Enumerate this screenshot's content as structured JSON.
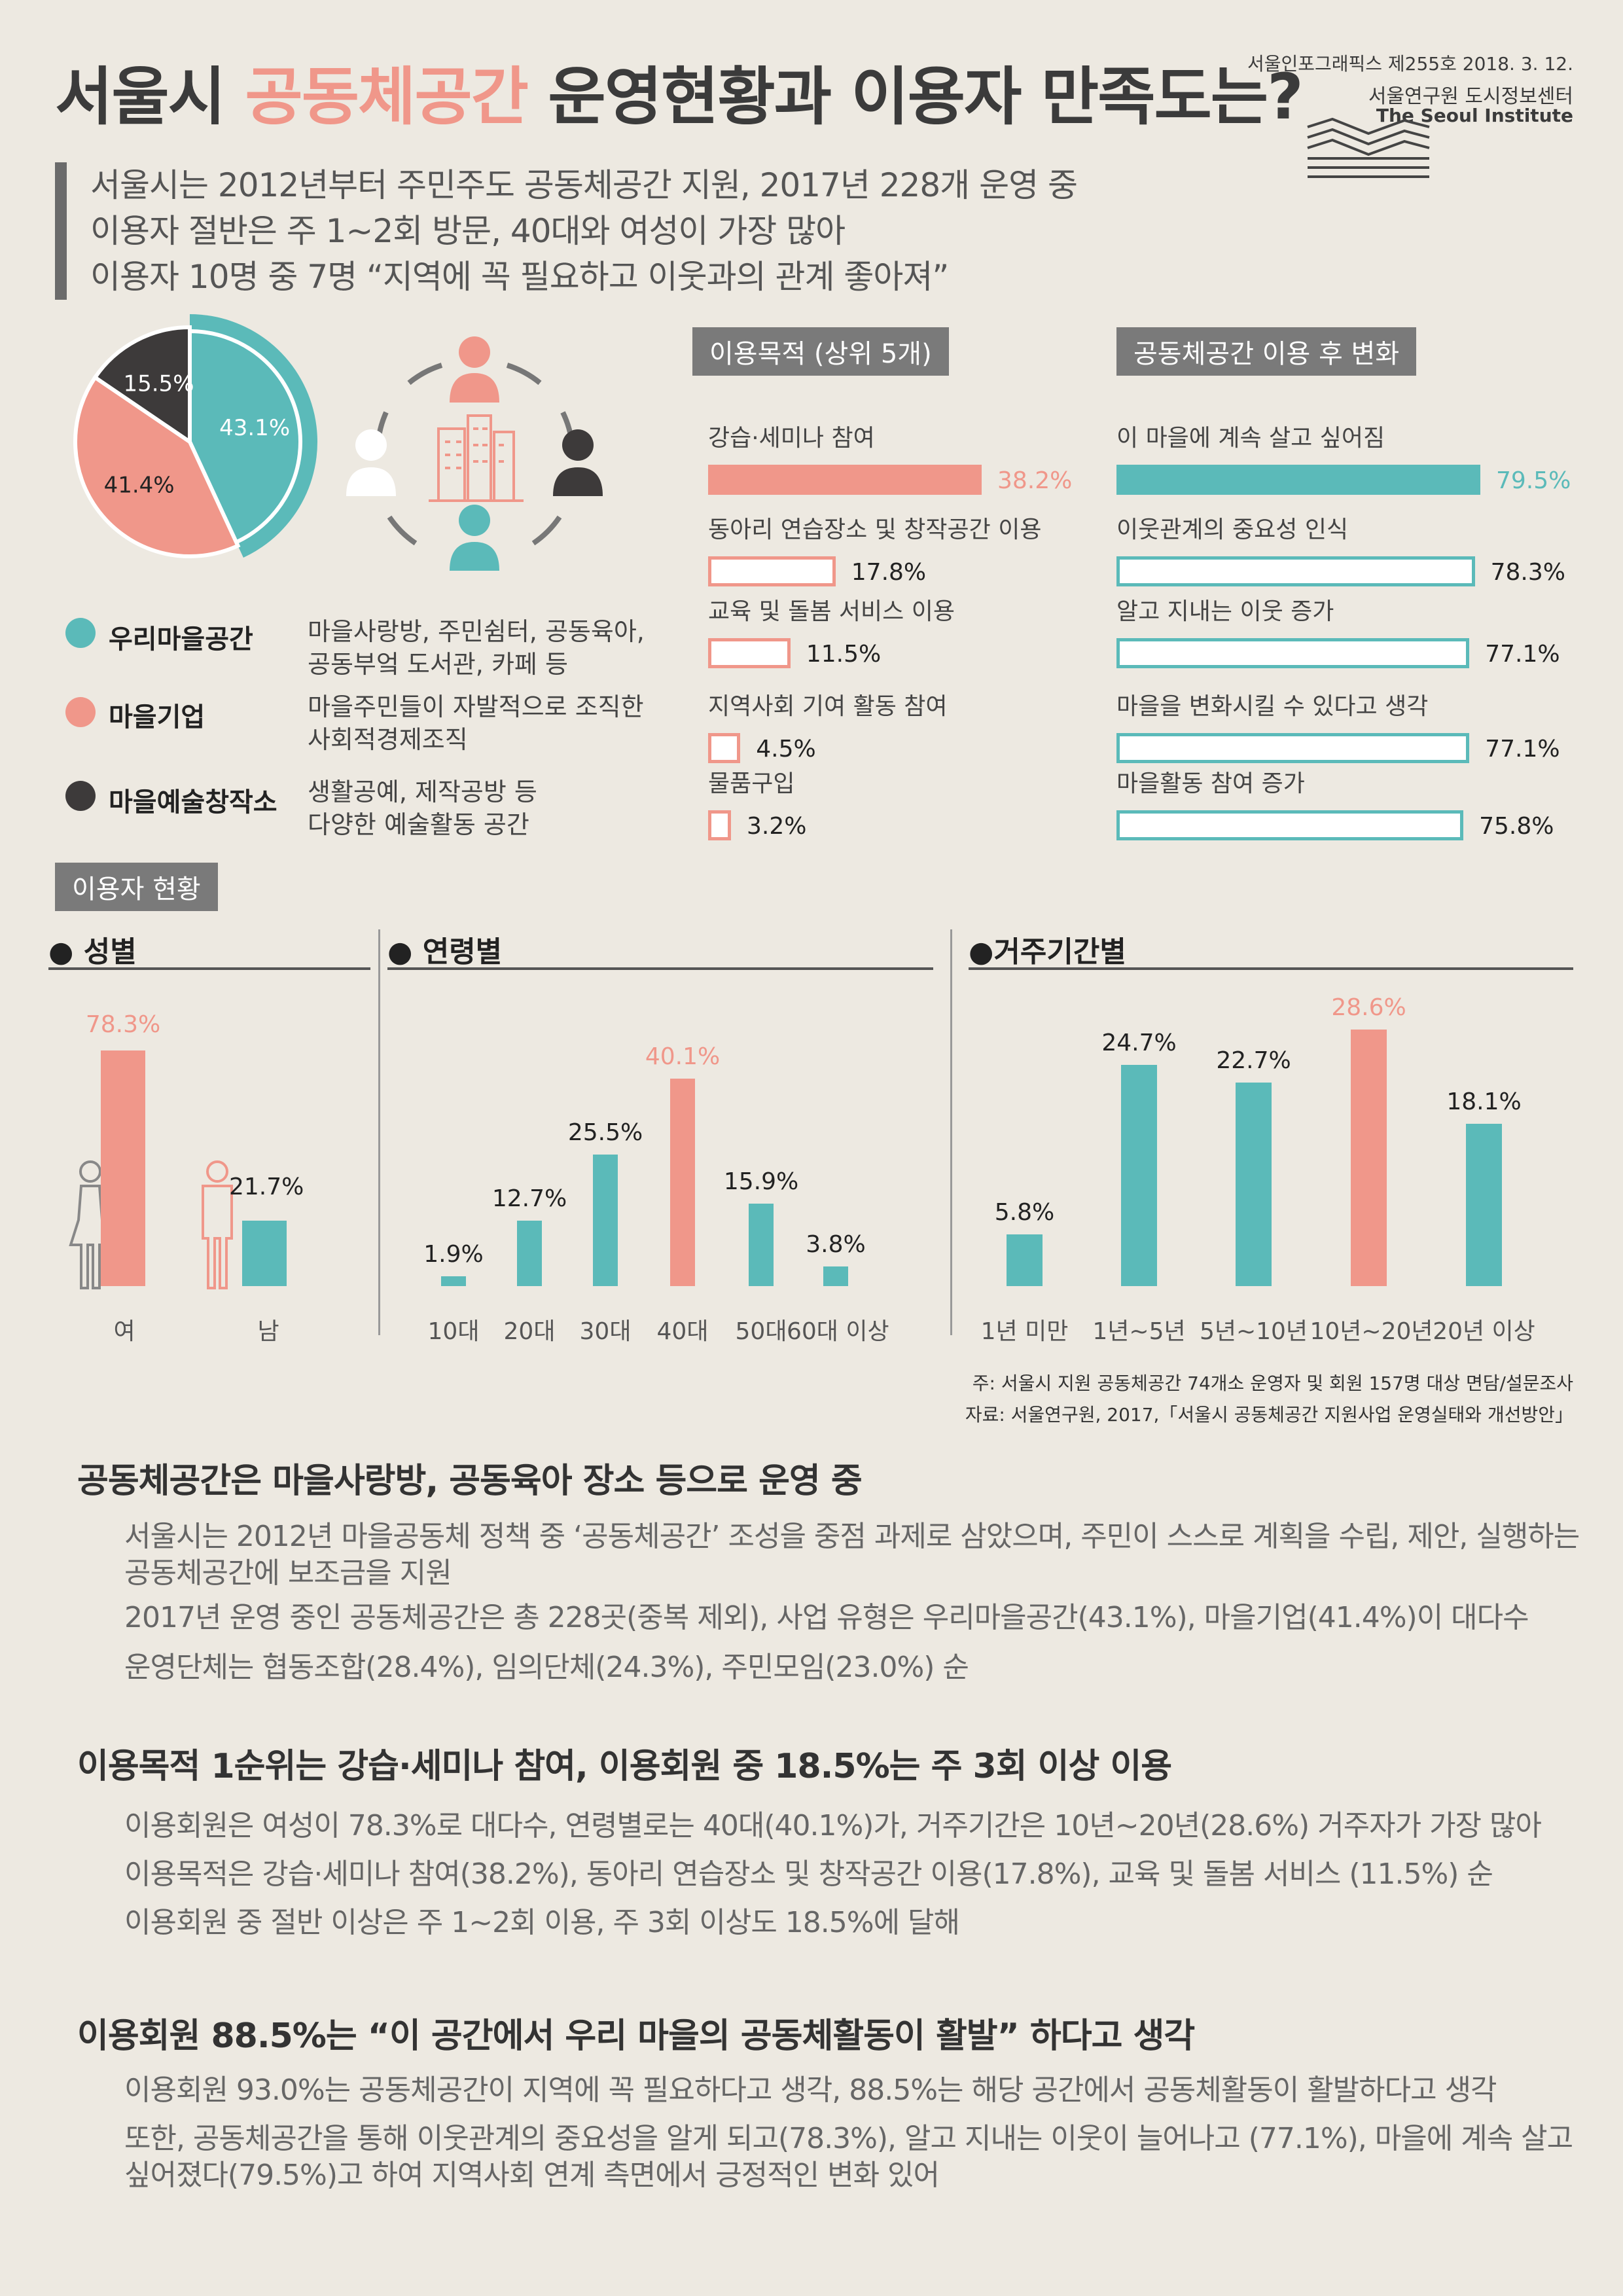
{
  "header": {
    "title_pre": "서울시 ",
    "title_accent": "공동체공간",
    "title_post": " 운영현황과 이용자 만족도는?",
    "issue": "서울인포그래픽스 제255호 2018. 3. 12.",
    "org_kr": "서울연구원 도시정보센터",
    "org_en": "The Seoul Institute"
  },
  "summary": [
    "서울시는 2012년부터 주민주도 공동체공간 지원, 2017년 228개 운영 중",
    "이용자 절반은 주 1~2회 방문, 40대와 여성이 가장 많아",
    "이용자 10명 중 7명 “지역에 꼭 필요하고 이웃과의 관계 좋아져”"
  ],
  "colors": {
    "teal": "#5bbab9",
    "salmon": "#f0978a",
    "dark": "#3d3a3a",
    "grey": "#7a7a7a"
  },
  "icons": [
    "person-icon",
    "building-icon"
  ],
  "legend": [
    {
      "name": "우리마을공간",
      "desc": [
        "마을사랑방, 주민쉼터, 공동육아,",
        "공동부엌 도서관, 카페 등"
      ],
      "color": "#5bbab9"
    },
    {
      "name": "마을기업",
      "desc": [
        "마을주민들이 자발적으로 조직한",
        "사회적경제조직"
      ],
      "color": "#f0978a"
    },
    {
      "name": "마을예술창작소",
      "desc": [
        "생활공예, 제작공방 등",
        "다양한 예술활동 공간"
      ],
      "color": "#3d3a3a"
    }
  ],
  "purpose_title": "이용목적 (상위 5개)",
  "change_title": "공동체공간 이용 후 변화",
  "users_title": "이용자 현황",
  "gender_title": "성별",
  "age_title": "연령별",
  "residence_title": "거주기간별",
  "chart_data": [
    {
      "type": "pie",
      "categories": [
        "우리마을공간",
        "마을기업",
        "마을예술창작소"
      ],
      "values": [
        43.1,
        41.4,
        15.5
      ],
      "labels": [
        "43.1%",
        "41.4%",
        "15.5%"
      ]
    },
    {
      "type": "bar",
      "orientation": "horizontal",
      "title": "이용목적 (상위 5개)",
      "categories": [
        "강습·세미나 참여",
        "동아리 연습장소 및 창작공간 이용",
        "교육 및 돌봄 서비스 이용",
        "지역사회 기여 활동 참여",
        "물품구입"
      ],
      "values": [
        38.2,
        17.8,
        11.5,
        4.5,
        3.2
      ],
      "labels": [
        "38.2%",
        "17.8%",
        "11.5%",
        "4.5%",
        "3.2%"
      ]
    },
    {
      "type": "bar",
      "orientation": "horizontal",
      "title": "공동체공간 이용 후 변화",
      "categories": [
        "이 마을에 계속 살고 싶어짐",
        "이웃관계의 중요성 인식",
        "알고 지내는 이웃 증가",
        "마을을 변화시킬 수 있다고 생각",
        "마을활동 참여 증가"
      ],
      "values": [
        79.5,
        78.3,
        77.1,
        77.1,
        75.8
      ],
      "labels": [
        "79.5%",
        "78.3%",
        "77.1%",
        "77.1%",
        "75.8%"
      ]
    },
    {
      "type": "bar",
      "title": "성별",
      "categories": [
        "여",
        "남"
      ],
      "values": [
        78.3,
        21.7
      ],
      "labels": [
        "78.3%",
        "21.7%"
      ]
    },
    {
      "type": "bar",
      "title": "연령별",
      "categories": [
        "10대",
        "20대",
        "30대",
        "40대",
        "50대",
        "60대 이상"
      ],
      "values": [
        1.9,
        12.7,
        25.5,
        40.1,
        15.9,
        3.8
      ],
      "labels": [
        "1.9%",
        "12.7%",
        "25.5%",
        "40.1%",
        "15.9%",
        "3.8%"
      ]
    },
    {
      "type": "bar",
      "title": "거주기간별",
      "categories": [
        "1년 미만",
        "1년~5년",
        "5년~10년",
        "10년~20년",
        "20년 이상"
      ],
      "values": [
        5.8,
        24.7,
        22.7,
        28.6,
        18.1
      ],
      "labels": [
        "5.8%",
        "24.7%",
        "22.7%",
        "28.6%",
        "18.1%"
      ]
    }
  ],
  "notes": [
    "주: 서울시 지원 공동체공간 74개소 운영자 및 회원 157명 대상 면담/설문조사",
    "자료: 서울연구원, 2017,「서울시 공동체공간 지원사업 운영실태와 개선방안」"
  ],
  "sections": [
    {
      "heading": "공동체공간은 마을사랑방, 공동육아 장소 등으로 운영 중",
      "paragraphs": [
        "서울시는 2012년 마을공동체 정책 중 ‘공동체공간’ 조성을 중점 과제로 삼았으며, 주민이 스스로 계획을 수립, 제안, 실행하는 공동체공간에 보조금을 지원",
        "2017년 운영 중인 공동체공간은 총 228곳(중복 제외), 사업 유형은 우리마을공간(43.1%), 마을기업(41.4%)이 대다수",
        "운영단체는 협동조합(28.4%), 임의단체(24.3%), 주민모임(23.0%) 순"
      ]
    },
    {
      "heading": "이용목적 1순위는 강습·세미나 참여, 이용회원 중 18.5%는 주 3회 이상 이용",
      "paragraphs": [
        "이용회원은 여성이 78.3%로 대다수, 연령별로는 40대(40.1%)가, 거주기간은 10년~20년(28.6%) 거주자가 가장 많아",
        "이용목적은 강습·세미나 참여(38.2%), 동아리 연습장소 및 창작공간 이용(17.8%), 교육 및 돌봄 서비스 (11.5%) 순",
        "이용회원 중 절반 이상은 주 1~2회 이용, 주 3회 이상도 18.5%에 달해"
      ]
    },
    {
      "heading": "이용회원 88.5%는 “이 공간에서 우리 마을의 공동체활동이 활발” 하다고 생각",
      "paragraphs": [
        "이용회원 93.0%는 공동체공간이 지역에 꼭 필요하다고 생각, 88.5%는 해당 공간에서 공동체활동이 활발하다고 생각",
        "또한, 공동체공간을 통해 이웃관계의 중요성을 알게 되고(78.3%), 알고 지내는 이웃이 늘어나고 (77.1%), 마을에 계속 살고 싶어졌다(79.5%)고 하여 지역사회 연계 측면에서 긍정적인 변화 있어"
      ]
    }
  ]
}
